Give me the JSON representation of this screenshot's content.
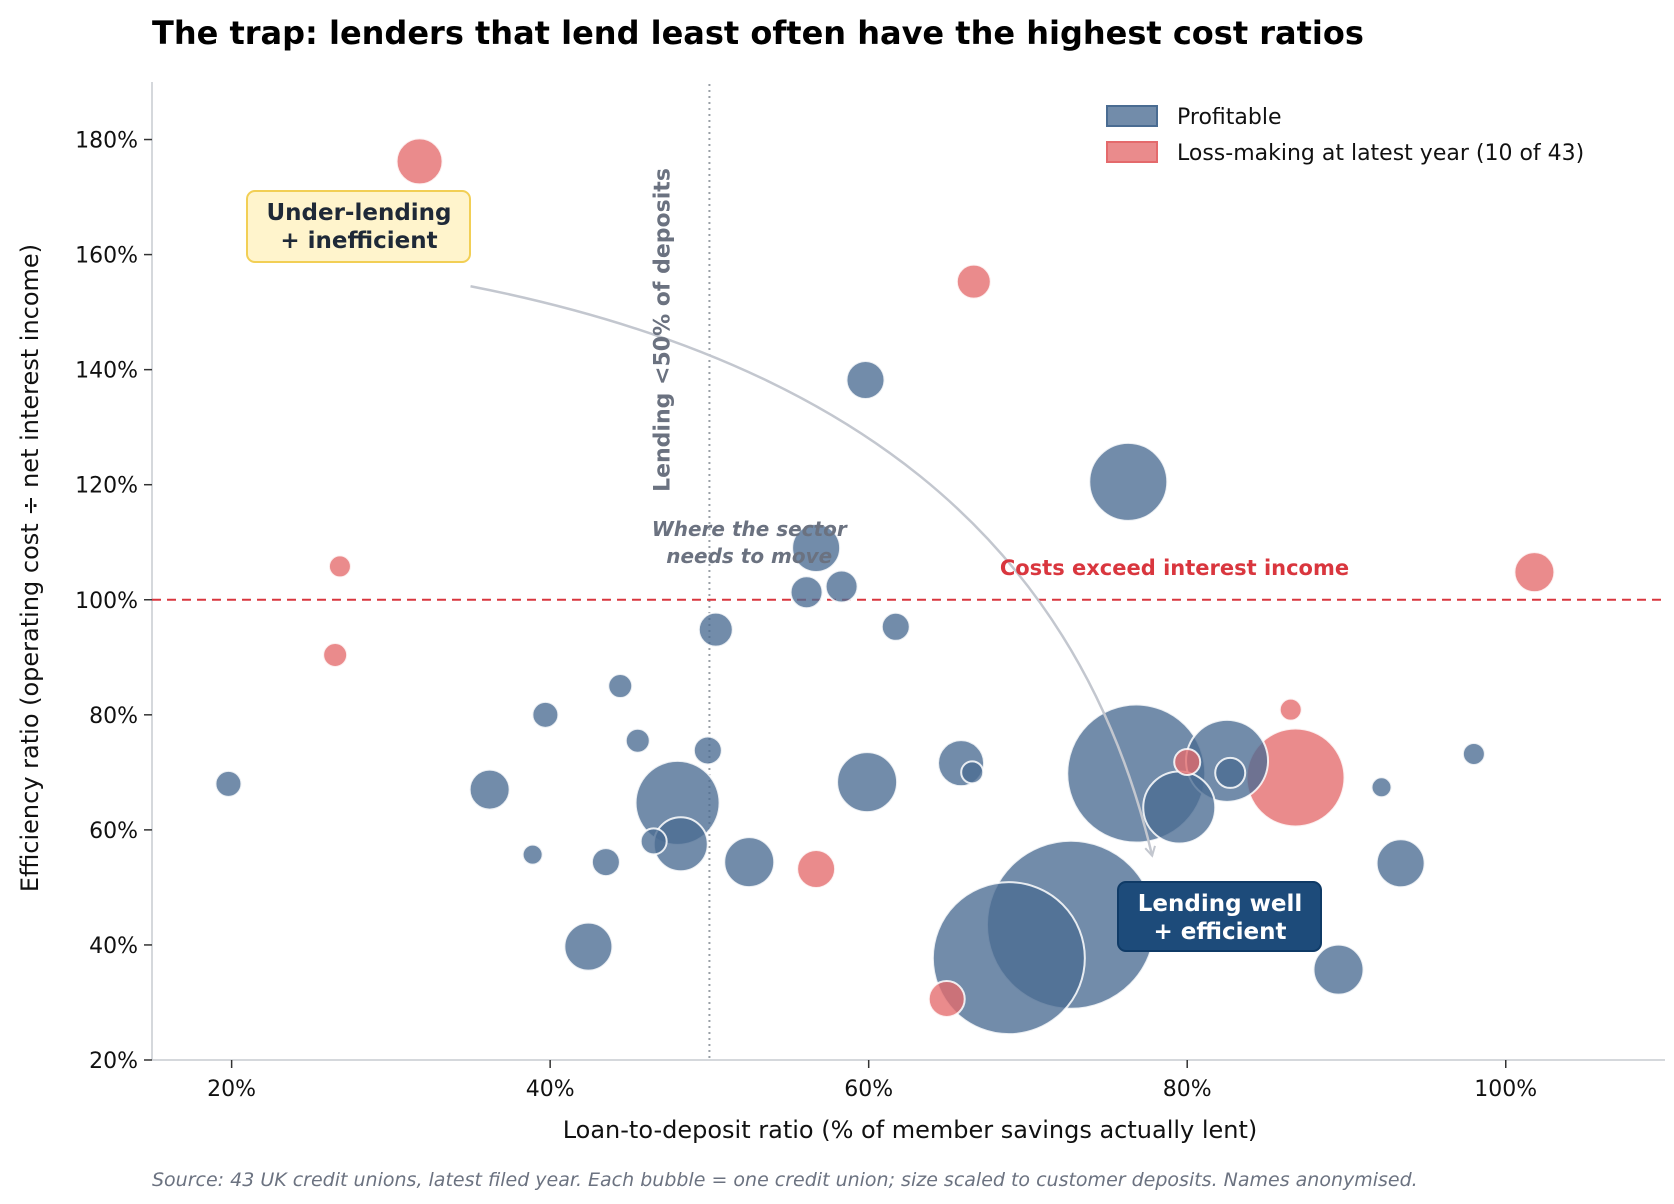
{
  "colors": {
    "profitable": "#4a6c92",
    "loss": "#e46a6c",
    "threshold": "#d9363e",
    "arrow": "#c3c7cf",
    "guide": "#9aa0a6",
    "muted": "#6b7280",
    "box_yellow_fill": "#fff4cc",
    "box_yellow_stroke": "#f2cf55",
    "box_blue_fill": "#1d4b7a",
    "box_blue_stroke": "#0f3a66"
  },
  "chart_data": {
    "type": "scatter",
    "title": "The trap: lenders that lend least often have the highest cost ratios",
    "xlabel": "Loan-to-deposit ratio (% of member savings actually lent)",
    "ylabel": "Efficiency ratio (operating cost ÷ net interest income)",
    "xlim": [
      15,
      110
    ],
    "ylim": [
      20,
      190
    ],
    "x_ticks": [
      20,
      40,
      60,
      80,
      100
    ],
    "x_tick_labels": [
      "20%",
      "40%",
      "60%",
      "80%",
      "100%"
    ],
    "y_ticks": [
      20,
      40,
      60,
      80,
      100,
      120,
      140,
      160,
      180
    ],
    "y_tick_labels": [
      "20%",
      "40%",
      "60%",
      "80%",
      "100%",
      "120%",
      "140%",
      "160%",
      "180%"
    ],
    "grid": false,
    "legend_position": "top-right",
    "series": [
      {
        "name": "Profitable",
        "points": [
          {
            "x": 19.8,
            "y": 68,
            "r": 13
          },
          {
            "x": 36.2,
            "y": 67,
            "r": 20
          },
          {
            "x": 38.9,
            "y": 55.7,
            "r": 10
          },
          {
            "x": 39.7,
            "y": 80,
            "r": 13
          },
          {
            "x": 42.4,
            "y": 39.7,
            "r": 24
          },
          {
            "x": 43.5,
            "y": 54.4,
            "r": 14
          },
          {
            "x": 44.4,
            "y": 85,
            "r": 12
          },
          {
            "x": 45.5,
            "y": 75.5,
            "r": 12
          },
          {
            "x": 46.5,
            "y": 58,
            "r": 13
          },
          {
            "x": 48.2,
            "y": 57.5,
            "r": 27
          },
          {
            "x": 48,
            "y": 64.7,
            "r": 42
          },
          {
            "x": 49.9,
            "y": 73.8,
            "r": 14
          },
          {
            "x": 50.4,
            "y": 94.8,
            "r": 17
          },
          {
            "x": 52.5,
            "y": 54.4,
            "r": 25
          },
          {
            "x": 56.1,
            "y": 101.3,
            "r": 16
          },
          {
            "x": 56.7,
            "y": 109,
            "r": 24
          },
          {
            "x": 58.3,
            "y": 102.3,
            "r": 16
          },
          {
            "x": 59.8,
            "y": 138.2,
            "r": 19
          },
          {
            "x": 59.9,
            "y": 68.3,
            "r": 30
          },
          {
            "x": 61.7,
            "y": 95.3,
            "r": 14
          },
          {
            "x": 65.8,
            "y": 71.6,
            "r": 23
          },
          {
            "x": 66.5,
            "y": 70,
            "r": 11
          },
          {
            "x": 68.8,
            "y": 37.7,
            "r": 76
          },
          {
            "x": 72.7,
            "y": 43.5,
            "r": 84
          },
          {
            "x": 76.3,
            "y": 120.5,
            "r": 39
          },
          {
            "x": 76.8,
            "y": 69.8,
            "r": 69
          },
          {
            "x": 79.5,
            "y": 63.9,
            "r": 36
          },
          {
            "x": 82.5,
            "y": 72,
            "r": 41
          },
          {
            "x": 82.7,
            "y": 69.9,
            "r": 15
          },
          {
            "x": 89.5,
            "y": 35.7,
            "r": 25
          },
          {
            "x": 92.2,
            "y": 67.4,
            "r": 10
          },
          {
            "x": 93.4,
            "y": 54.2,
            "r": 24
          },
          {
            "x": 98,
            "y": 73.2,
            "r": 11
          }
        ]
      },
      {
        "name": "Loss-making at latest year (10 of 43)",
        "points": [
          {
            "x": 26.5,
            "y": 90.4,
            "r": 12
          },
          {
            "x": 26.8,
            "y": 105.8,
            "r": 11
          },
          {
            "x": 31.8,
            "y": 176.2,
            "r": 23
          },
          {
            "x": 56.7,
            "y": 53.2,
            "r": 19
          },
          {
            "x": 64.9,
            "y": 30.6,
            "r": 18
          },
          {
            "x": 66.6,
            "y": 155.3,
            "r": 17
          },
          {
            "x": 80,
            "y": 71.8,
            "r": 13
          },
          {
            "x": 86.5,
            "y": 80.9,
            "r": 11
          },
          {
            "x": 86.8,
            "y": 69.1,
            "r": 49
          },
          {
            "x": 101.8,
            "y": 104.8,
            "r": 20
          }
        ]
      }
    ],
    "reference_lines": {
      "horizontal": {
        "y": 100,
        "label": "Costs exceed interest income"
      },
      "vertical": {
        "x": 50,
        "label": "Lending <50% of deposits"
      }
    },
    "annotations": {
      "under_lending": {
        "line1": "Under-lending",
        "line2": "+ inefficient"
      },
      "lending_well": {
        "line1": "Lending well",
        "line2": "+ efficient"
      },
      "move": {
        "line1": "Where the sector",
        "line2": "needs to move"
      }
    },
    "source": "Source: 43 UK credit unions, latest filed year. Each bubble = one credit union; size scaled to customer deposits. Names anonymised."
  }
}
